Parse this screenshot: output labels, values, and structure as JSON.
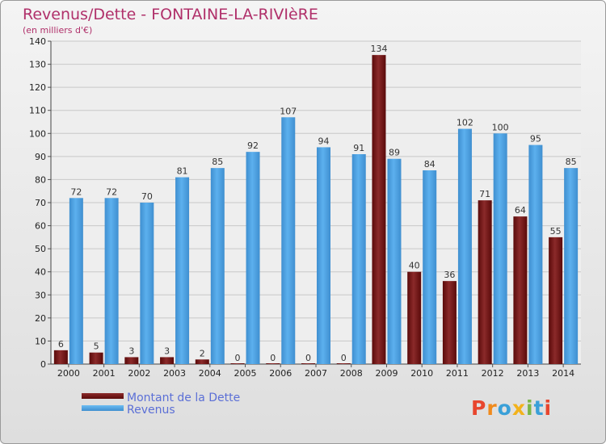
{
  "chart_data": {
    "type": "bar",
    "title": "Revenus/Dette - FONTAINE-LA-RIVIèRE",
    "subtitle": "(en milliers d'€)",
    "categories": [
      "2000",
      "2001",
      "2002",
      "2003",
      "2004",
      "2005",
      "2006",
      "2007",
      "2008",
      "2009",
      "2010",
      "2011",
      "2012",
      "2013",
      "2014"
    ],
    "series": [
      {
        "name": "Montant de la Dette",
        "color": "#7a1a1a",
        "values": [
          6,
          5,
          3,
          3,
          2,
          0,
          0,
          0,
          0,
          134,
          40,
          36,
          71,
          64,
          55
        ]
      },
      {
        "name": "Revenus",
        "color": "#4fa3e3",
        "values": [
          72,
          72,
          70,
          81,
          85,
          92,
          107,
          94,
          91,
          89,
          84,
          102,
          100,
          95,
          85
        ]
      }
    ],
    "ylim": [
      0,
      140
    ],
    "yticks": [
      0,
      10,
      20,
      30,
      40,
      50,
      60,
      70,
      80,
      90,
      100,
      110,
      120,
      130,
      140
    ],
    "grid": true,
    "legend_position": "bottom-left"
  },
  "logo": {
    "letters": [
      "P",
      "r",
      "o",
      "x",
      "i",
      "t",
      "i"
    ],
    "colors": [
      "#e8462e",
      "#f08a1c",
      "#3aa0d8",
      "#f2b21b",
      "#7ab648",
      "#3aa0d8",
      "#e8462e"
    ]
  }
}
